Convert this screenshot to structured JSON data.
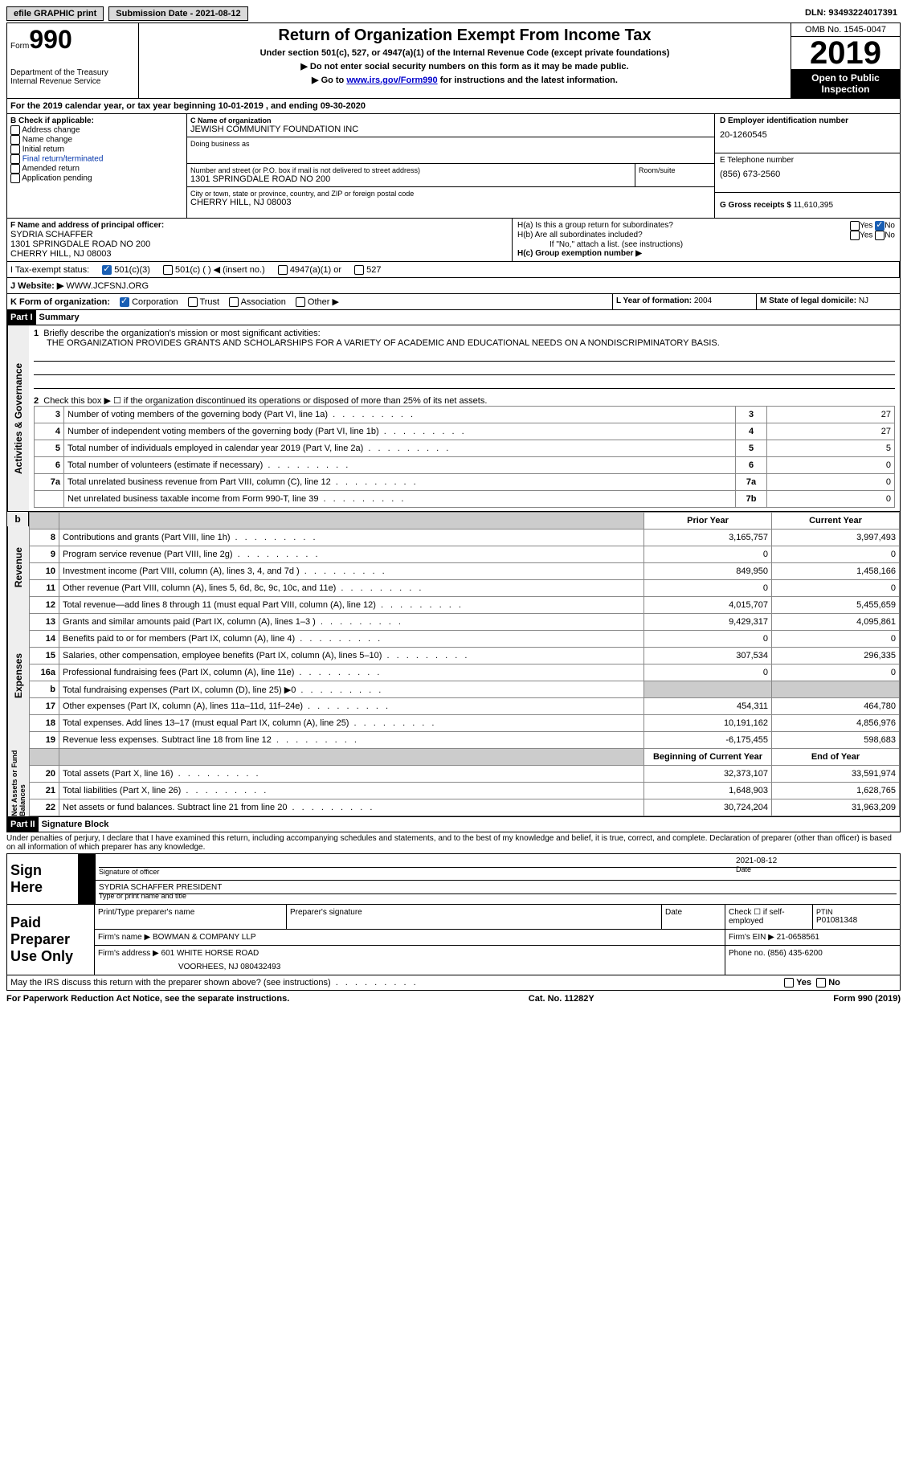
{
  "top": {
    "efile": "efile GRAPHIC print",
    "submission_label": "Submission Date - ",
    "submission_date": "2021-08-12",
    "dln_label": "DLN: ",
    "dln": "93493224017391"
  },
  "header": {
    "form_prefix": "Form",
    "form_no": "990",
    "dept1": "Department of the Treasury",
    "dept2": "Internal Revenue Service",
    "title": "Return of Organization Exempt From Income Tax",
    "sub1": "Under section 501(c), 527, or 4947(a)(1) of the Internal Revenue Code (except private foundations)",
    "sub2": "▶ Do not enter social security numbers on this form as it may be made public.",
    "sub3_pre": "▶ Go to ",
    "sub3_link": "www.irs.gov/Form990",
    "sub3_post": " for instructions and the latest information.",
    "omb": "OMB No. 1545-0047",
    "year": "2019",
    "open": "Open to Public Inspection"
  },
  "a_line": "For the 2019 calendar year, or tax year beginning 10-01-2019   , and ending 09-30-2020",
  "b": {
    "label": "B Check if applicable:",
    "opts": [
      "Address change",
      "Name change",
      "Initial return",
      "Final return/terminated",
      "Amended return",
      "Application pending"
    ]
  },
  "c": {
    "label": "C Name of organization",
    "name": "JEWISH COMMUNITY FOUNDATION INC",
    "dba_label": "Doing business as",
    "addr_label": "Number and street (or P.O. box if mail is not delivered to street address)",
    "room_label": "Room/suite",
    "addr": "1301 SPRINGDALE ROAD NO 200",
    "city_label": "City or town, state or province, country, and ZIP or foreign postal code",
    "city": "CHERRY HILL, NJ  08003"
  },
  "d": {
    "label": "D Employer identification number",
    "value": "20-1260545"
  },
  "e": {
    "label": "E Telephone number",
    "value": "(856) 673-2560"
  },
  "g": {
    "label": "G Gross receipts $ ",
    "value": "11,610,395"
  },
  "f": {
    "label": "F Name and address of principal officer:",
    "name": "SYDRIA SCHAFFER",
    "addr1": "1301 SPRINGDALE ROAD NO 200",
    "addr2": "CHERRY HILL, NJ  08003"
  },
  "h": {
    "a": "H(a)  Is this a group return for subordinates?",
    "b": "H(b)  Are all subordinates included?",
    "note": "If \"No,\" attach a list. (see instructions)",
    "c": "H(c)  Group exemption number ▶"
  },
  "i": {
    "label": "I   Tax-exempt status:",
    "o1": "501(c)(3)",
    "o2": "501(c) (  ) ◀ (insert no.)",
    "o3": "4947(a)(1) or",
    "o4": "527"
  },
  "j": {
    "label": "J   Website: ▶",
    "value": " WWW.JCFSNJ.ORG"
  },
  "k": {
    "label": "K Form of organization:",
    "o1": "Corporation",
    "o2": "Trust",
    "o3": "Association",
    "o4": "Other ▶"
  },
  "l": {
    "label": "L Year of formation: ",
    "value": "2004"
  },
  "m": {
    "label": "M State of legal domicile: ",
    "value": "NJ"
  },
  "part1": {
    "tag": "Part I",
    "title": "Summary"
  },
  "gov": {
    "q1": "Briefly describe the organization's mission or most significant activities:",
    "mission": "THE ORGANIZATION PROVIDES GRANTS AND SCHOLARSHIPS FOR A VARIETY OF ACADEMIC AND EDUCATIONAL NEEDS ON A NONDISCRIPMINATORY BASIS.",
    "q2": "Check this box ▶ ☐  if the organization discontinued its operations or disposed of more than 25% of its net assets.",
    "rows": [
      {
        "n": "3",
        "d": "Number of voting members of the governing body (Part VI, line 1a)",
        "box": "3",
        "v": "27"
      },
      {
        "n": "4",
        "d": "Number of independent voting members of the governing body (Part VI, line 1b)",
        "box": "4",
        "v": "27"
      },
      {
        "n": "5",
        "d": "Total number of individuals employed in calendar year 2019 (Part V, line 2a)",
        "box": "5",
        "v": "5"
      },
      {
        "n": "6",
        "d": "Total number of volunteers (estimate if necessary)",
        "box": "6",
        "v": "0"
      },
      {
        "n": "7a",
        "d": "Total unrelated business revenue from Part VIII, column (C), line 12",
        "box": "7a",
        "v": "0"
      },
      {
        "n": "",
        "d": "Net unrelated business taxable income from Form 990-T, line 39",
        "box": "7b",
        "v": "0"
      }
    ]
  },
  "fin_hdr": {
    "prior": "Prior Year",
    "current": "Current Year"
  },
  "revenue": [
    {
      "n": "8",
      "d": "Contributions and grants (Part VIII, line 1h)",
      "p": "3,165,757",
      "c": "3,997,493"
    },
    {
      "n": "9",
      "d": "Program service revenue (Part VIII, line 2g)",
      "p": "0",
      "c": "0"
    },
    {
      "n": "10",
      "d": "Investment income (Part VIII, column (A), lines 3, 4, and 7d )",
      "p": "849,950",
      "c": "1,458,166"
    },
    {
      "n": "11",
      "d": "Other revenue (Part VIII, column (A), lines 5, 6d, 8c, 9c, 10c, and 11e)",
      "p": "0",
      "c": "0"
    },
    {
      "n": "12",
      "d": "Total revenue—add lines 8 through 11 (must equal Part VIII, column (A), line 12)",
      "p": "4,015,707",
      "c": "5,455,659"
    }
  ],
  "expenses": [
    {
      "n": "13",
      "d": "Grants and similar amounts paid (Part IX, column (A), lines 1–3 )",
      "p": "9,429,317",
      "c": "4,095,861"
    },
    {
      "n": "14",
      "d": "Benefits paid to or for members (Part IX, column (A), line 4)",
      "p": "0",
      "c": "0"
    },
    {
      "n": "15",
      "d": "Salaries, other compensation, employee benefits (Part IX, column (A), lines 5–10)",
      "p": "307,534",
      "c": "296,335"
    },
    {
      "n": "16a",
      "d": "Professional fundraising fees (Part IX, column (A), line 11e)",
      "p": "0",
      "c": "0"
    },
    {
      "n": "b",
      "d": "Total fundraising expenses (Part IX, column (D), line 25) ▶0",
      "p": "",
      "c": "",
      "shade": true
    },
    {
      "n": "17",
      "d": "Other expenses (Part IX, column (A), lines 11a–11d, 11f–24e)",
      "p": "454,311",
      "c": "464,780"
    },
    {
      "n": "18",
      "d": "Total expenses. Add lines 13–17 (must equal Part IX, column (A), line 25)",
      "p": "10,191,162",
      "c": "4,856,976"
    },
    {
      "n": "19",
      "d": "Revenue less expenses. Subtract line 18 from line 12",
      "p": "-6,175,455",
      "c": "598,683"
    }
  ],
  "net_hdr": {
    "begin": "Beginning of Current Year",
    "end": "End of Year"
  },
  "net": [
    {
      "n": "20",
      "d": "Total assets (Part X, line 16)",
      "p": "32,373,107",
      "c": "33,591,974"
    },
    {
      "n": "21",
      "d": "Total liabilities (Part X, line 26)",
      "p": "1,648,903",
      "c": "1,628,765"
    },
    {
      "n": "22",
      "d": "Net assets or fund balances. Subtract line 21 from line 20",
      "p": "30,724,204",
      "c": "31,963,209"
    }
  ],
  "part2": {
    "tag": "Part II",
    "title": "Signature Block"
  },
  "sig": {
    "penalties": "Under penalties of perjury, I declare that I have examined this return, including accompanying schedules and statements, and to the best of my knowledge and belief, it is true, correct, and complete. Declaration of preparer (other than officer) is based on all information of which preparer has any knowledge.",
    "sign_here": "Sign Here",
    "sig_officer": "Signature of officer",
    "date_label": "Date",
    "date": "2021-08-12",
    "name_title": "SYDRIA SCHAFFER  PRESIDENT",
    "type_name": "Type or print name and title",
    "paid": "Paid Preparer Use Only",
    "p1": "Print/Type preparer's name",
    "p2": "Preparer's signature",
    "p3": "Date",
    "p4_label": "Check ☐ if self-employed",
    "p5_label": "PTIN",
    "p5": "P01081348",
    "firm_name_label": "Firm's name    ▶ ",
    "firm_name": "BOWMAN & COMPANY LLP",
    "firm_ein_label": "Firm's EIN ▶ ",
    "firm_ein": "21-0658561",
    "firm_addr_label": "Firm's address ▶ ",
    "firm_addr1": "601 WHITE HORSE ROAD",
    "firm_addr2": "VOORHEES, NJ  080432493",
    "phone_label": "Phone no. ",
    "phone": "(856) 435-6200",
    "may_irs": "May the IRS discuss this return with the preparer shown above? (see instructions)"
  },
  "footer": {
    "left": "For Paperwork Reduction Act Notice, see the separate instructions.",
    "mid": "Cat. No. 11282Y",
    "right": "Form 990 (2019)"
  }
}
